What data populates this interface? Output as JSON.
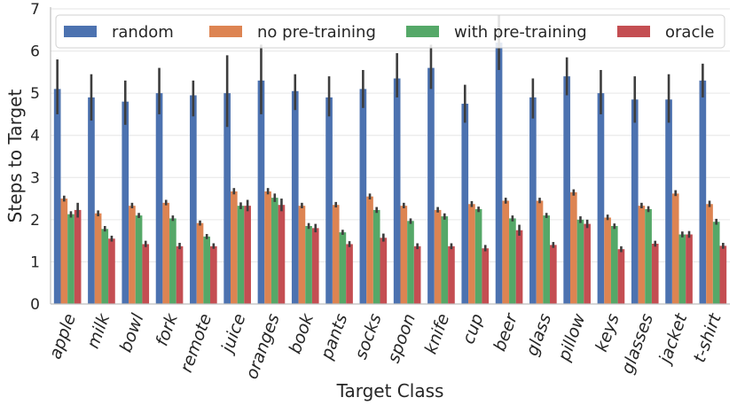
{
  "chart_data": {
    "type": "bar",
    "title": "",
    "xlabel": "Target Class",
    "ylabel": "Steps to Target",
    "ylim": [
      0,
      7
    ],
    "yticks": [
      0,
      1,
      2,
      3,
      4,
      5,
      6,
      7
    ],
    "grid": "horizontal",
    "legend_position": "top",
    "categories": [
      "apple",
      "milk",
      "bowl",
      "fork",
      "remote",
      "juice",
      "oranges",
      "book",
      "pants",
      "socks",
      "spoon",
      "knife",
      "cup",
      "beer",
      "glass",
      "pillow",
      "keys",
      "glasses",
      "jacket",
      "t-shirt"
    ],
    "series": [
      {
        "name": "random",
        "color": "#4c72b0",
        "values": [
          5.1,
          4.9,
          4.8,
          5.0,
          4.95,
          5.0,
          5.3,
          5.05,
          4.9,
          5.1,
          5.35,
          5.6,
          4.75,
          6.2,
          4.9,
          5.4,
          5.0,
          4.85,
          4.85,
          5.3
        ],
        "err_low": [
          4.5,
          4.35,
          4.25,
          4.5,
          4.45,
          4.2,
          4.5,
          4.6,
          4.45,
          4.65,
          4.9,
          5.1,
          4.3,
          5.55,
          4.4,
          4.95,
          4.5,
          4.3,
          4.3,
          4.9
        ],
        "err_high": [
          5.8,
          5.45,
          5.3,
          5.6,
          5.3,
          5.9,
          6.15,
          5.45,
          5.4,
          5.55,
          5.95,
          6.15,
          5.2,
          6.85,
          5.35,
          5.85,
          5.55,
          5.4,
          5.45,
          5.7
        ]
      },
      {
        "name": "no pre-training",
        "color": "#dd8452",
        "values": [
          2.5,
          2.15,
          2.33,
          2.4,
          1.92,
          2.67,
          2.67,
          2.33,
          2.35,
          2.55,
          2.33,
          2.23,
          2.37,
          2.45,
          2.45,
          2.65,
          2.05,
          2.33,
          2.62,
          2.37
        ],
        "err_low": [
          2.43,
          2.08,
          2.27,
          2.34,
          1.86,
          2.6,
          2.6,
          2.27,
          2.29,
          2.48,
          2.27,
          2.17,
          2.3,
          2.38,
          2.39,
          2.57,
          1.99,
          2.27,
          2.56,
          2.3
        ],
        "err_high": [
          2.57,
          2.22,
          2.4,
          2.47,
          1.98,
          2.75,
          2.75,
          2.4,
          2.42,
          2.62,
          2.4,
          2.3,
          2.44,
          2.52,
          2.52,
          2.72,
          2.12,
          2.4,
          2.7,
          2.45
        ]
      },
      {
        "name": "with pre-training",
        "color": "#55a868",
        "values": [
          2.13,
          1.78,
          2.1,
          2.03,
          1.6,
          2.33,
          2.52,
          1.85,
          1.7,
          2.23,
          1.97,
          2.08,
          2.25,
          2.03,
          2.1,
          2.0,
          1.85,
          2.25,
          1.65,
          1.95
        ],
        "err_low": [
          2.05,
          1.72,
          2.04,
          1.97,
          1.54,
          2.25,
          2.42,
          1.78,
          1.64,
          2.16,
          1.9,
          2.0,
          2.18,
          1.96,
          2.04,
          1.92,
          1.78,
          2.18,
          1.58,
          1.88
        ],
        "err_high": [
          2.2,
          1.85,
          2.16,
          2.1,
          1.66,
          2.41,
          2.62,
          1.92,
          1.76,
          2.3,
          2.03,
          2.15,
          2.31,
          2.1,
          2.16,
          2.08,
          1.91,
          2.32,
          1.72,
          2.02
        ]
      },
      {
        "name": "oracle",
        "color": "#c44e52",
        "values": [
          2.23,
          1.55,
          1.42,
          1.37,
          1.37,
          2.33,
          2.35,
          1.8,
          1.42,
          1.57,
          1.37,
          1.37,
          1.32,
          1.75,
          1.4,
          1.9,
          1.3,
          1.43,
          1.65,
          1.38
        ],
        "err_low": [
          2.05,
          1.48,
          1.35,
          1.3,
          1.31,
          2.2,
          2.2,
          1.7,
          1.35,
          1.48,
          1.3,
          1.3,
          1.25,
          1.62,
          1.33,
          1.8,
          1.23,
          1.36,
          1.57,
          1.31
        ],
        "err_high": [
          2.4,
          1.62,
          1.5,
          1.45,
          1.44,
          2.47,
          2.5,
          1.9,
          1.49,
          1.67,
          1.44,
          1.44,
          1.4,
          1.88,
          1.47,
          2.0,
          1.37,
          1.5,
          1.73,
          1.45
        ]
      }
    ]
  }
}
